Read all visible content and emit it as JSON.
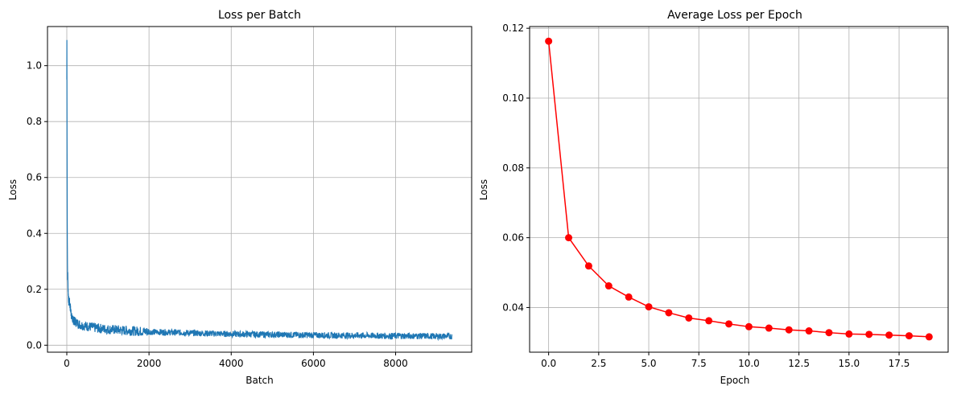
{
  "chart_data": [
    {
      "type": "line",
      "title": "Loss per Batch",
      "xlabel": "Batch",
      "ylabel": "Loss",
      "xlim": [
        -470,
        9850
      ],
      "ylim": [
        -0.025,
        1.14
      ],
      "xticks": [
        0,
        2000,
        4000,
        6000,
        8000
      ],
      "xtick_labels": [
        "0",
        "2000",
        "4000",
        "6000",
        "8000"
      ],
      "yticks": [
        0.0,
        0.2,
        0.4,
        0.6,
        0.8,
        1.0
      ],
      "ytick_labels": [
        "0.0",
        "0.2",
        "0.4",
        "0.6",
        "0.8",
        "1.0"
      ],
      "grid": true,
      "color": "#1f77b4",
      "series": [
        {
          "x": [
            0,
            2,
            5,
            10,
            15,
            20,
            25,
            30,
            40,
            50,
            60,
            80,
            100,
            120,
            150,
            200,
            250,
            300,
            400,
            500,
            600,
            700,
            800,
            1000,
            1200,
            1500,
            2000,
            2500,
            3000,
            3500,
            4000,
            4500,
            5000,
            5500,
            6000,
            6500,
            7000,
            7500,
            8000,
            8500,
            9000,
            9370
          ],
          "y": [
            0.95,
            1.09,
            0.8,
            0.45,
            0.3,
            0.24,
            0.26,
            0.2,
            0.17,
            0.15,
            0.16,
            0.14,
            0.12,
            0.1,
            0.09,
            0.085,
            0.08,
            0.075,
            0.07,
            0.068,
            0.065,
            0.062,
            0.06,
            0.057,
            0.055,
            0.052,
            0.048,
            0.046,
            0.044,
            0.042,
            0.04,
            0.039,
            0.038,
            0.037,
            0.036,
            0.035,
            0.035,
            0.034,
            0.033,
            0.033,
            0.032,
            0.032
          ]
        }
      ]
    },
    {
      "type": "line",
      "title": "Average Loss per Epoch",
      "xlabel": "Epoch",
      "ylabel": "Loss",
      "xlim": [
        -0.95,
        19.95
      ],
      "ylim": [
        0.0272,
        0.1205
      ],
      "xticks": [
        0,
        2.5,
        5,
        7.5,
        10,
        12.5,
        15,
        17.5
      ],
      "xtick_labels": [
        "0.0",
        "2.5",
        "5.0",
        "7.5",
        "10.0",
        "12.5",
        "15.0",
        "17.5"
      ],
      "yticks": [
        0.04,
        0.06,
        0.08,
        0.1,
        0.12
      ],
      "ytick_labels": [
        "0.04",
        "0.06",
        "0.08",
        "0.10",
        "0.12"
      ],
      "grid": true,
      "color": "#ff0000",
      "marker": "circle",
      "series": [
        {
          "x": [
            0,
            1,
            2,
            3,
            4,
            5,
            6,
            7,
            8,
            9,
            10,
            11,
            12,
            13,
            14,
            15,
            16,
            17,
            18,
            19
          ],
          "y": [
            0.1163,
            0.06,
            0.0519,
            0.0462,
            0.043,
            0.0402,
            0.0385,
            0.037,
            0.0362,
            0.0353,
            0.0345,
            0.0341,
            0.0336,
            0.0333,
            0.0328,
            0.0324,
            0.0323,
            0.0321,
            0.0319,
            0.0316
          ]
        }
      ]
    }
  ]
}
